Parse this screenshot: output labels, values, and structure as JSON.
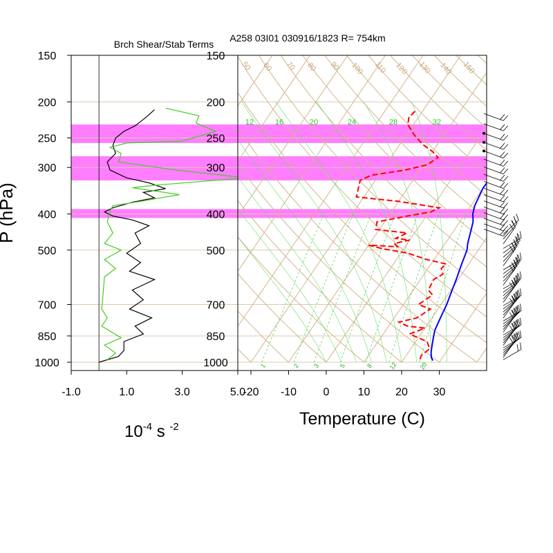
{
  "title": "A258 03I01 030916/1823 R= 754km",
  "left_panel_title": "Brch Shear/Stab Terms",
  "y_axis_label": "P (hPa)",
  "left_x_label_base": "10",
  "left_x_label_exp1": "-4",
  "left_x_label_mid": " s ",
  "left_x_label_exp2": "-2",
  "right_x_label": "Temperature (C)",
  "chart_data": [
    {
      "type": "line",
      "title": "Brch Shear/Stab Terms",
      "xlabel": "10^-4 s^-2",
      "ylabel": "P (hPa)",
      "y_scale": "log",
      "ylim": [
        1000,
        150
      ],
      "xlim": [
        -1.0,
        5.0
      ],
      "x_tick_labels": [
        "-1.0",
        "1.0",
        "3.0",
        "5.0"
      ],
      "x_ticks": [
        -1.0,
        1.0,
        3.0,
        5.0
      ],
      "y_ticks": [
        150,
        200,
        250,
        300,
        400,
        500,
        700,
        850,
        1000
      ],
      "highlight_bands_hPa": [
        [
          230,
          258
        ],
        [
          280,
          325
        ],
        [
          388,
          410
        ]
      ],
      "series": [
        {
          "color": "#000000",
          "points": [
            [
              2.0,
              210
            ],
            [
              1.7,
              220
            ],
            [
              1.3,
              232
            ],
            [
              0.9,
              240
            ],
            [
              0.6,
              250
            ],
            [
              0.5,
              262
            ],
            [
              0.6,
              275
            ],
            [
              0.3,
              290
            ],
            [
              0.4,
              305
            ],
            [
              1.0,
              320
            ],
            [
              1.8,
              330
            ],
            [
              2.4,
              342
            ],
            [
              1.6,
              350
            ],
            [
              2.0,
              362
            ],
            [
              1.2,
              372
            ],
            [
              0.5,
              385
            ],
            [
              0.2,
              395
            ],
            [
              0.5,
              405
            ],
            [
              1.2,
              415
            ],
            [
              1.8,
              430
            ],
            [
              1.3,
              450
            ],
            [
              1.5,
              480
            ],
            [
              1.0,
              510
            ],
            [
              1.5,
              540
            ],
            [
              1.1,
              570
            ],
            [
              2.0,
              600
            ],
            [
              1.2,
              640
            ],
            [
              1.6,
              680
            ],
            [
              1.1,
              720
            ],
            [
              1.9,
              760
            ],
            [
              1.3,
              800
            ],
            [
              1.6,
              840
            ],
            [
              0.9,
              880
            ],
            [
              0.9,
              930
            ],
            [
              0.7,
              965
            ],
            [
              0.0,
              1000
            ]
          ]
        },
        {
          "color": "#44cc22",
          "points": [
            [
              2.4,
              208
            ],
            [
              3.6,
              218
            ],
            [
              3.5,
              228
            ],
            [
              4.2,
              240
            ],
            [
              3.0,
              255
            ],
            [
              1.0,
              258
            ],
            [
              0.4,
              265
            ],
            [
              0.8,
              275
            ],
            [
              0.7,
              290
            ],
            [
              2.8,
              305
            ],
            [
              5.3,
              320
            ],
            [
              2.0,
              335
            ],
            [
              1.2,
              340
            ],
            [
              2.9,
              355
            ],
            [
              1.5,
              370
            ],
            [
              0.5,
              380
            ],
            [
              0.4,
              393
            ],
            [
              0.3,
              420
            ],
            [
              0.5,
              450
            ],
            [
              0.2,
              480
            ],
            [
              0.8,
              500
            ],
            [
              0.2,
              530
            ],
            [
              0.6,
              560
            ],
            [
              0.2,
              590
            ],
            [
              0.1,
              720
            ],
            [
              0.3,
              760
            ],
            [
              0.1,
              800
            ],
            [
              0.8,
              860
            ],
            [
              0.2,
              900
            ],
            [
              0.6,
              945
            ],
            [
              0.3,
              985
            ]
          ]
        }
      ]
    },
    {
      "type": "line",
      "title": "A258 03I01 030916/1823 R= 754km",
      "xlabel": "Temperature (C)",
      "ylabel": "P (hPa)",
      "y_scale": "log",
      "ylim": [
        1000,
        150
      ],
      "x_tick_labels": [
        "-20",
        "-10",
        "0",
        "10",
        "20",
        "30"
      ],
      "x_ticks": [
        -20,
        -10,
        0,
        10,
        20,
        30
      ],
      "y_ticks": [
        150,
        200,
        250,
        300,
        400,
        500,
        700,
        850,
        1000
      ],
      "dry_adiabat_labels": [
        "50",
        "60",
        "70",
        "80",
        "90",
        "100",
        "110",
        "120",
        "130",
        "140",
        "150"
      ],
      "mixing_ratio_labels": [
        "1",
        "2",
        "3",
        "5",
        "8",
        "12",
        "20"
      ],
      "wet_bulb_labels": [
        "12",
        "16",
        "20",
        "24",
        "28",
        "32"
      ],
      "series": [
        {
          "color": "#0000ff",
          "points": [
            [
              0.5,
              202
            ],
            [
              1.5,
              222
            ],
            [
              3.0,
              240
            ],
            [
              5.0,
              260
            ],
            [
              7.0,
              280
            ],
            [
              9.0,
              300
            ],
            [
              10.2,
              320
            ],
            [
              10.0,
              340
            ],
            [
              10.5,
              360
            ],
            [
              11.0,
              380
            ],
            [
              12.0,
              400
            ],
            [
              13.5,
              420
            ],
            [
              14.8,
              450
            ],
            [
              16.0,
              480
            ],
            [
              17.0,
              500
            ],
            [
              18.0,
              540
            ],
            [
              18.5,
              560
            ],
            [
              19.5,
              600
            ],
            [
              20.5,
              650
            ],
            [
              21.5,
              700
            ],
            [
              22.0,
              740
            ],
            [
              22.5,
              780
            ],
            [
              23.0,
              820
            ],
            [
              24.0,
              860
            ],
            [
              25.0,
              900
            ],
            [
              26.0,
              940
            ],
            [
              27.0,
              970
            ],
            [
              28.0,
              990
            ]
          ]
        },
        {
          "color": "#ff0000",
          "dashed": true,
          "points": [
            [
              -22.0,
              212
            ],
            [
              -22.5,
              220
            ],
            [
              -21.5,
              230
            ],
            [
              -18.0,
              245
            ],
            [
              -14.0,
              260
            ],
            [
              -10.0,
              272
            ],
            [
              -7.5,
              282
            ],
            [
              -9.0,
              295
            ],
            [
              -14.0,
              305
            ],
            [
              -22.0,
              315
            ],
            [
              -24.0,
              325
            ],
            [
              -22.0,
              360
            ],
            [
              -10.0,
              370
            ],
            [
              2.0,
              385
            ],
            [
              0.5,
              395
            ],
            [
              -5.0,
              405
            ],
            [
              -12.0,
              420
            ],
            [
              -11.0,
              440
            ],
            [
              -2.0,
              450
            ],
            [
              -4.0,
              465
            ],
            [
              0.0,
              470
            ],
            [
              -3.5,
              480
            ],
            [
              -2.0,
              490
            ],
            [
              -10.0,
              485
            ],
            [
              -6.0,
              495
            ],
            [
              2.0,
              510
            ],
            [
              8.0,
              530
            ],
            [
              14.0,
              545
            ],
            [
              13.5,
              560
            ],
            [
              15.0,
              580
            ],
            [
              13.5,
              600
            ],
            [
              14.0,
              640
            ],
            [
              16.0,
              660
            ],
            [
              14.0,
              700
            ],
            [
              18.0,
              720
            ],
            [
              16.0,
              760
            ],
            [
              12.0,
              780
            ],
            [
              15.0,
              800
            ],
            [
              20.0,
              810
            ],
            [
              17.0,
              840
            ],
            [
              23.0,
              880
            ],
            [
              25.0,
              920
            ],
            [
              24.0,
              960
            ],
            [
              24.5,
              990
            ]
          ]
        }
      ]
    }
  ]
}
